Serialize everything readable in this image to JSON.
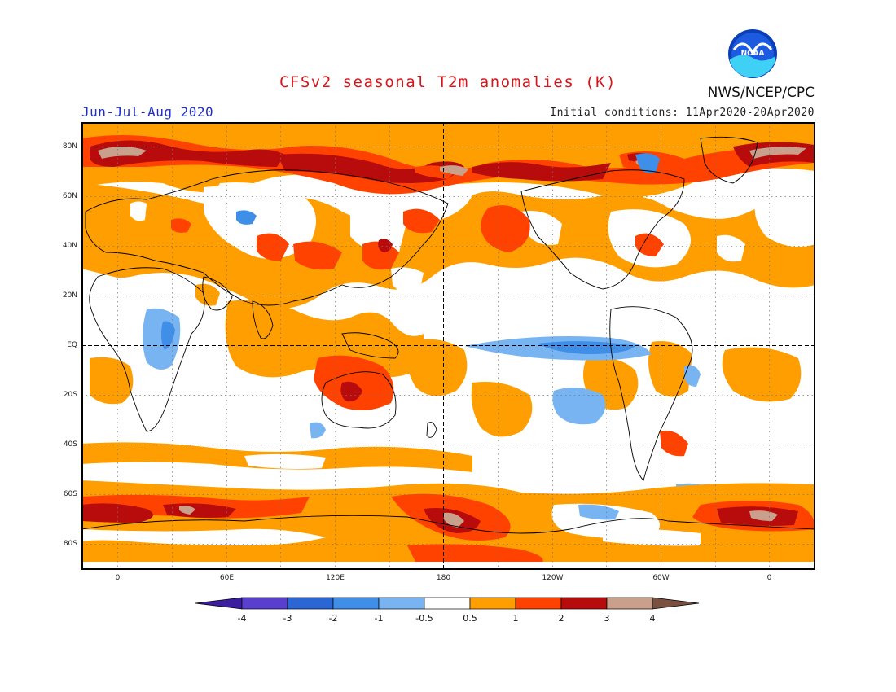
{
  "title": "CFSv2 seasonal T2m anomalies (K)",
  "season": "Jun-Jul-Aug 2020",
  "initial_conditions": "Initial conditions: 11Apr2020-20Apr2020",
  "agency": "NWS/NCEP/CPC",
  "logo_text": "NOAA",
  "lat_labels": [
    "80N",
    "60N",
    "40N",
    "20N",
    "EQ",
    "20S",
    "40S",
    "60S",
    "80S"
  ],
  "lon_labels": [
    "0",
    "60E",
    "120E",
    "180",
    "120W",
    "60W",
    "0"
  ],
  "colorbar": {
    "labels": [
      "-4",
      "-3",
      "-2",
      "-1",
      "-0.5",
      "0.5",
      "1",
      "2",
      "3",
      "4"
    ],
    "colors": [
      "#3b1ea0",
      "#5a3fcf",
      "#2a66d4",
      "#3f8ee8",
      "#78b4f2",
      "#ffffff",
      "#ff9e00",
      "#ff4200",
      "#b80c0c",
      "#c8a08c",
      "#7a5040"
    ]
  },
  "colors": {
    "warm_light": "#ff9e00",
    "warm_mid": "#ff4200",
    "warm_dark": "#b80c0c",
    "warm_extreme": "#c8a08c",
    "cool_light": "#78b4f2",
    "cool_mid": "#3f8ee8",
    "title": "#d4161b",
    "season": "#1f2ec8"
  }
}
